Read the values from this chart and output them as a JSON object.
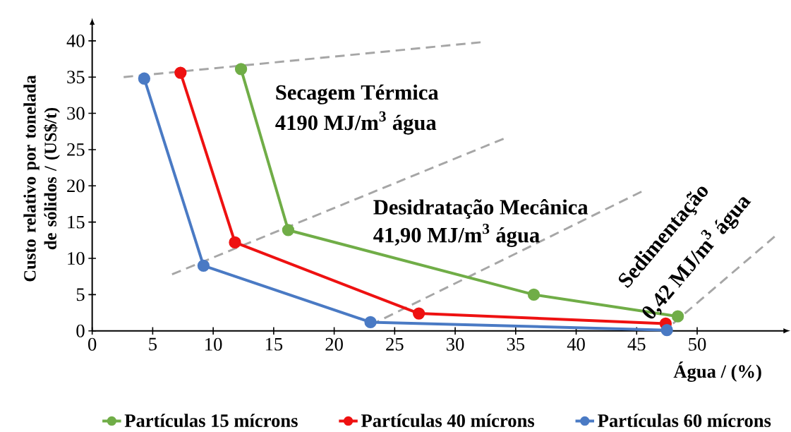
{
  "chart_data": {
    "type": "line",
    "xlabel": "Água / (%)",
    "ylabel": "Custo relativo por tonelada de sólidos / (US$/t)",
    "annotations": [
      "Secagem Térmica",
      "4190 MJ/m$^{3}$ água",
      "Desidratação Mecânica",
      "41,90 MJ/m$^{3}$ água",
      "Sedimentação",
      "0,42 MJ/m$^{3}$ água"
    ],
    "xlim": [
      0,
      57
    ],
    "ylim": [
      0,
      42
    ],
    "xticks": [
      0,
      5,
      10,
      15,
      20,
      25,
      30,
      35,
      40,
      45,
      50
    ],
    "yticks": [
      0,
      5,
      10,
      15,
      20,
      25,
      30,
      35,
      40
    ],
    "legend": "bottom",
    "marker": "circle",
    "line_style": "solid",
    "series": [
      {
        "type": "line",
        "color": "#a6a6a6",
        "line_style": "dashed",
        "marker": "none",
        "x": [
          2.6,
          32.1
        ],
        "values": [
          35,
          39.8
        ]
      },
      {
        "type": "line",
        "color": "#a6a6a6",
        "line_style": "dashed",
        "marker": "none",
        "x": [
          6.6,
          34
        ],
        "values": [
          7.8,
          26.5
        ]
      },
      {
        "type": "line",
        "color": "#a6a6a6",
        "line_style": "dashed",
        "marker": "none",
        "x": [
          23,
          45.4
        ],
        "values": [
          0.8,
          19.2
        ]
      },
      {
        "type": "line",
        "color": "#a6a6a6",
        "line_style": "dashed",
        "marker": "none",
        "x": [
          48,
          56.4
        ],
        "values": [
          1,
          13
        ]
      },
      {
        "name": "Partículas 15 mícrons",
        "color": "#70ad47",
        "x": [
          12.3,
          16.2,
          36.5,
          48.4
        ],
        "values": [
          36.1,
          13.9,
          5.0,
          2.0
        ]
      },
      {
        "name": "Partículas 40 mícrons",
        "color": "#ee1111",
        "x": [
          7.3,
          11.8,
          27,
          47.4
        ],
        "values": [
          35.6,
          12.2,
          2.4,
          1.0
        ]
      },
      {
        "name": "Partículas 60 mícrons",
        "color": "#4a7ac4",
        "x": [
          4.3,
          9.2,
          23,
          47.5
        ],
        "values": [
          34.8,
          9.0,
          1.2,
          0.1
        ]
      }
    ]
  }
}
